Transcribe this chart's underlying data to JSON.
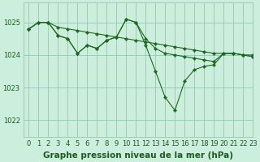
{
  "background_color": "#cceedd",
  "grid_color": "#99ccbb",
  "line_color": "#1a6b1a",
  "marker_color": "#1a6b1a",
  "title": "Graphe pression niveau de la mer (hPa)",
  "xlim": [
    -0.5,
    23
  ],
  "ylim": [
    1021.5,
    1025.6
  ],
  "yticks": [
    1022,
    1023,
    1024,
    1025
  ],
  "xticks": [
    0,
    1,
    2,
    3,
    4,
    5,
    6,
    7,
    8,
    9,
    10,
    11,
    12,
    13,
    14,
    15,
    16,
    17,
    18,
    19,
    20,
    21,
    22,
    23
  ],
  "series": [
    {
      "x": [
        0,
        1,
        2,
        3,
        4,
        5,
        6,
        7,
        8,
        9,
        10,
        11,
        12,
        13,
        14,
        15,
        16,
        17,
        18,
        19,
        20,
        21,
        22,
        23
      ],
      "y": [
        1024.8,
        1025.0,
        1025.0,
        1024.85,
        1024.8,
        1024.75,
        1024.7,
        1024.65,
        1024.6,
        1024.55,
        1024.5,
        1024.45,
        1024.4,
        1024.35,
        1024.3,
        1024.25,
        1024.2,
        1024.15,
        1024.1,
        1024.05,
        1024.05,
        1024.05,
        1024.0,
        1024.0
      ]
    },
    {
      "x": [
        0,
        1,
        2,
        3,
        4,
        5,
        6,
        7,
        8,
        9,
        10,
        11,
        12,
        13,
        14,
        15,
        16,
        17,
        18,
        19,
        20,
        21,
        22,
        23
      ],
      "y": [
        1024.8,
        1025.0,
        1025.0,
        1024.6,
        1024.5,
        1024.05,
        1024.3,
        1024.2,
        1024.45,
        1024.55,
        1025.1,
        1025.0,
        1024.5,
        1024.2,
        1024.05,
        1024.0,
        1023.95,
        1023.9,
        1023.85,
        1023.8,
        1024.05,
        1024.05,
        1024.0,
        1023.95
      ]
    },
    {
      "x": [
        0,
        1,
        2,
        3,
        4,
        5,
        6,
        7,
        8,
        9,
        10,
        11,
        12,
        13,
        14,
        15,
        16,
        17,
        18,
        19,
        20,
        21,
        22,
        23
      ],
      "y": [
        1024.8,
        1025.0,
        1025.0,
        1024.6,
        1024.5,
        1024.05,
        1024.3,
        1024.2,
        1024.45,
        1024.55,
        1025.1,
        1025.0,
        1024.3,
        1023.5,
        1022.7,
        1022.3,
        1023.2,
        1023.55,
        1023.65,
        1023.7,
        1024.05,
        1024.05,
        1024.0,
        1023.95
      ]
    }
  ],
  "title_fontsize": 7.5,
  "tick_fontsize": 6,
  "title_color": "#1a5c1a",
  "tick_color": "#1a5c1a"
}
